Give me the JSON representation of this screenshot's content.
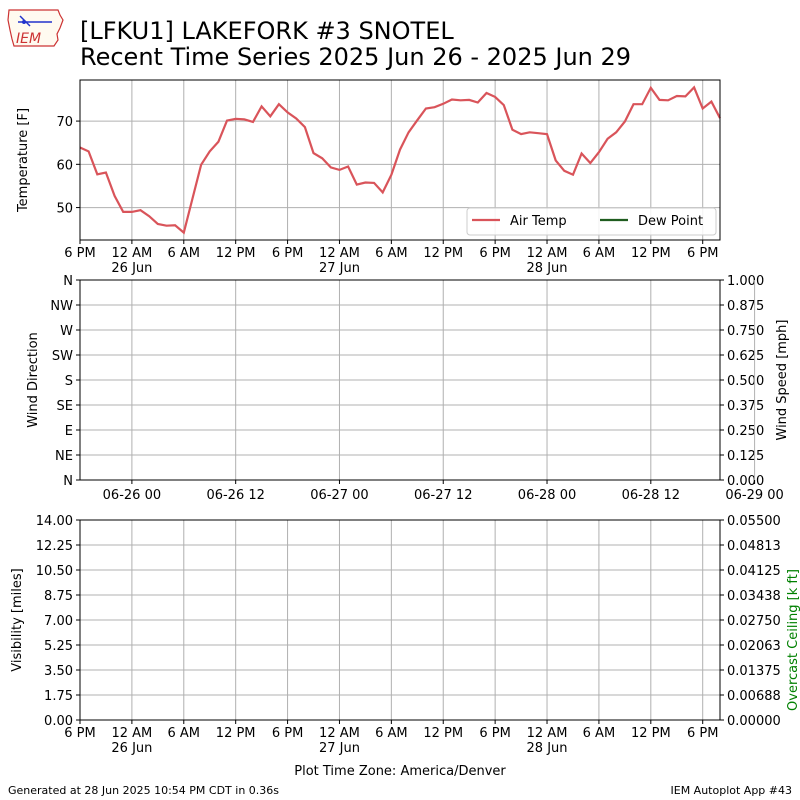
{
  "title": {
    "line1": "[LFKU1] LAKEFORK #3 SNOTEL",
    "line2": "Recent Time Series 2025 Jun 26 - 2025 Jun 29"
  },
  "logo": {
    "text": "IEM",
    "icon": "iowa-state-outline-icon"
  },
  "footer": {
    "generated": "Generated at 28 Jun 2025 10:54 PM CDT in 0.36s",
    "app": "IEM Autoplot App #43"
  },
  "colors": {
    "air_temp": "#d9545a",
    "dew_point": "#1f5c1f",
    "grid": "#b0b0b0",
    "ceiling_label": "#008000"
  },
  "chart_data": [
    {
      "type": "line",
      "ylabel": "Temperature [F]",
      "x_ticks": [
        "6 PM",
        "12 AM",
        "6 AM",
        "12 PM",
        "6 PM",
        "12 AM",
        "6 AM",
        "12 PM",
        "6 PM",
        "12 AM",
        "6 AM",
        "12 PM",
        "6 PM"
      ],
      "x_day_labels": [
        "26 Jun",
        "27 Jun",
        "28 Jun"
      ],
      "y_ticks": [
        50,
        60,
        70
      ],
      "ylim": [
        42.5,
        79.5
      ],
      "x_range_hours": [
        0,
        74
      ],
      "grid": true,
      "legend": "bottom-right",
      "legend_entries": [
        "Air Temp",
        "Dew Point"
      ],
      "series": [
        {
          "name": "Air Temp",
          "x_hours_from_jun25_6pm": [
            0,
            1,
            2,
            3,
            4,
            5,
            6,
            7,
            8,
            9,
            10,
            11,
            12,
            13,
            14,
            15,
            16,
            17,
            18,
            19,
            20,
            21,
            22,
            23,
            24,
            25,
            26,
            27,
            28,
            29,
            30,
            31,
            32,
            33,
            34,
            35,
            36,
            37,
            38,
            39,
            40,
            41,
            42,
            43,
            44,
            45,
            46,
            47,
            48,
            49,
            50,
            51,
            52,
            53,
            54,
            55,
            56,
            57,
            58,
            59,
            60,
            61,
            62,
            63,
            64,
            65,
            66,
            67,
            68,
            69,
            70,
            71,
            72,
            73,
            74
          ],
          "values": [
            63.9,
            63.0,
            57.7,
            58.1,
            52.7,
            49.0,
            49.0,
            49.4,
            48.0,
            46.2,
            45.8,
            45.9,
            44.2,
            52.0,
            59.9,
            63.0,
            65.2,
            70.1,
            70.5,
            70.4,
            69.8,
            73.4,
            71.1,
            73.9,
            72.0,
            70.6,
            68.6,
            62.6,
            61.4,
            59.3,
            58.7,
            59.5,
            55.3,
            55.8,
            55.7,
            53.5,
            57.6,
            63.4,
            67.4,
            70.2,
            72.9,
            73.2,
            74.0,
            75.0,
            74.8,
            74.9,
            74.3,
            76.5,
            75.6,
            73.7,
            68.0,
            67.0,
            67.4,
            67.2,
            67.0,
            60.9,
            58.5,
            57.6,
            62.5,
            60.3,
            62.8,
            65.9,
            67.4,
            69.9,
            73.9,
            73.9,
            77.7,
            74.9,
            74.8,
            75.8,
            75.7,
            77.8,
            72.9,
            74.5,
            70.7
          ]
        },
        {
          "name": "Dew Point",
          "values": []
        }
      ]
    },
    {
      "type": "line",
      "ylabel": "Wind Direction",
      "y2label": "Wind Speed [mph]",
      "y_ticks": [
        "N",
        "NW",
        "W",
        "SW",
        "S",
        "SE",
        "E",
        "NE",
        "N"
      ],
      "y2_ticks": [
        "1.000",
        "0.875",
        "0.750",
        "0.625",
        "0.500",
        "0.375",
        "0.250",
        "0.125",
        "0.000"
      ],
      "x_ticks": [
        "06-26 00",
        "06-26 12",
        "06-27 00",
        "06-27 12",
        "06-28 00",
        "06-28 12",
        "06-29 00"
      ],
      "grid": true,
      "series": []
    },
    {
      "type": "line",
      "ylabel": "Visibility [miles]",
      "y2label": "Overcast Ceiling [k ft]",
      "y_ticks": [
        "0.00",
        "1.75",
        "3.50",
        "5.25",
        "7.00",
        "8.75",
        "10.50",
        "12.25",
        "14.00"
      ],
      "y2_ticks": [
        "0.00000",
        "0.00688",
        "0.01375",
        "0.02063",
        "0.02750",
        "0.03438",
        "0.04125",
        "0.04813",
        "0.05500"
      ],
      "x_ticks": [
        "6 PM",
        "12 AM",
        "6 AM",
        "12 PM",
        "6 PM",
        "12 AM",
        "6 AM",
        "12 PM",
        "6 PM",
        "12 AM",
        "6 AM",
        "12 PM",
        "6 PM"
      ],
      "x_day_labels": [
        "26 Jun",
        "27 Jun",
        "28 Jun"
      ],
      "xlabel": "Plot Time Zone: America/Denver",
      "grid": true,
      "series": []
    }
  ]
}
